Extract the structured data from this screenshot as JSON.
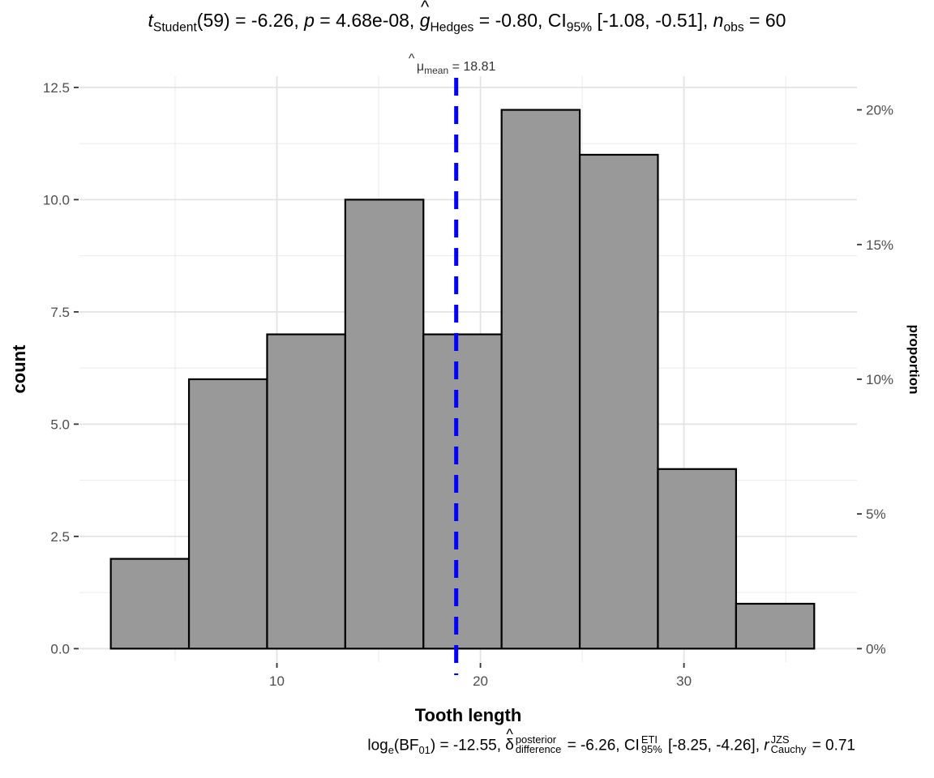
{
  "subtitle": {
    "t_symbol": "t",
    "t_sub": "Student",
    "t_df": "(59) = -6.26, ",
    "p_symbol": "p",
    "p_value": " = 4.68e-08, ",
    "g_symbol": "g",
    "g_sub": "Hedges",
    "g_value": " = -0.80, CI",
    "ci_sub": "95%",
    "ci_value": " [-1.08, -0.51], ",
    "n_symbol": "n",
    "n_sub": "obs",
    "n_value": " = 60"
  },
  "caption": {
    "log_text": "log",
    "log_sub": "e",
    "bf_open": "(BF",
    "bf_sub": "01",
    "bf_value": ") = -12.55, ",
    "delta_symbol": "δ",
    "delta_sup": "posterior",
    "delta_sub": "difference",
    "delta_value": " = -6.26, CI",
    "ci_sup": "ETI",
    "ci_sub": "95%",
    "ci_value": " [-8.25, -4.26], ",
    "r_symbol": "r",
    "r_sup": "JZS",
    "r_sub": "Cauchy",
    "r_value": " = 0.71"
  },
  "mean_label": {
    "symbol": "μ",
    "sub": "mean",
    "value": " = 18.81"
  },
  "chart_data": {
    "type": "histogram",
    "xlabel": "Tooth length",
    "ylabel": "count",
    "y2label": "proportion",
    "xlim": [
      0.3,
      38.5
    ],
    "ylim": [
      -0.3,
      12.75
    ],
    "x_ticks": [
      10,
      20,
      30
    ],
    "x_tick_labels": [
      "10",
      "20",
      "30"
    ],
    "y_ticks": [
      0,
      2.5,
      5,
      7.5,
      10,
      12.5
    ],
    "y_tick_labels": [
      "0.0",
      "2.5",
      "5.0",
      "7.5",
      "10.0",
      "12.5"
    ],
    "y2_ticks": [
      0,
      0.05,
      0.1,
      0.15,
      0.2
    ],
    "y2_tick_labels": [
      "0%",
      "5%",
      "10%",
      "15%",
      "20%"
    ],
    "n_total": 60,
    "bins": [
      {
        "start": 1.84,
        "end": 5.68,
        "count": 2
      },
      {
        "start": 5.68,
        "end": 9.52,
        "count": 6
      },
      {
        "start": 9.52,
        "end": 13.36,
        "count": 7
      },
      {
        "start": 13.36,
        "end": 17.2,
        "count": 10
      },
      {
        "start": 17.2,
        "end": 21.04,
        "count": 7
      },
      {
        "start": 21.04,
        "end": 24.88,
        "count": 12
      },
      {
        "start": 24.88,
        "end": 28.72,
        "count": 11
      },
      {
        "start": 28.72,
        "end": 32.56,
        "count": 4
      },
      {
        "start": 32.56,
        "end": 36.4,
        "count": 1
      }
    ],
    "mean": 18.81,
    "bar_color": "#999999",
    "bar_outline": "#000000",
    "mean_line_color": "#0000ff",
    "grid": true
  }
}
